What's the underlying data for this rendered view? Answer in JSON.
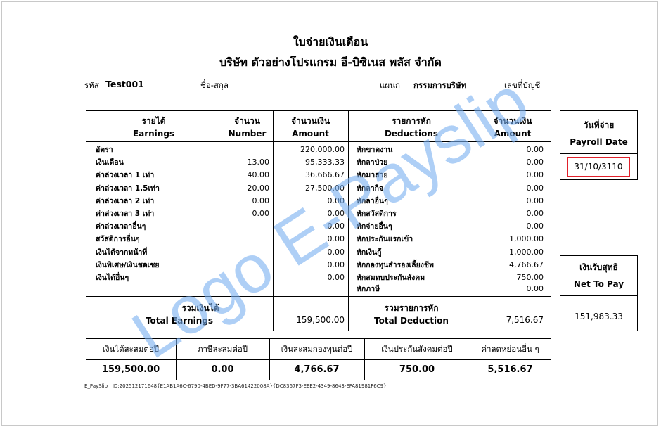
{
  "title": "ใบจ่ายเงินเดือน",
  "company": "บริษัท ตัวอย่างโปรแกรม อี-บิซิเนส พลัส  จำกัด",
  "info": {
    "code_label": "รหัส",
    "code_value": "Test001",
    "name_label": "ชื่อ-สกุล",
    "dept_label": "แผนก",
    "dept_value": "กรรมการบริษัท",
    "account_label": "เลขที่บัญชี"
  },
  "headers": {
    "earnings_th": "รายได้",
    "earnings_en": "Earnings",
    "number_th": "จำนวน",
    "number_en": "Number",
    "amount_th": "จำนวนเงิน",
    "amount_en": "Amount",
    "deductions_th": "รายการหัก",
    "deductions_en": "Deductions",
    "damount_th": "จำนวนเงิน",
    "damount_en": "Amount"
  },
  "earnings": [
    {
      "label": "อัตรา",
      "number": "",
      "amount": "220,000.00"
    },
    {
      "label": "เงินเดือน",
      "number": "13.00",
      "amount": "95,333.33"
    },
    {
      "label": "ค่าล่วงเวลา 1 เท่า",
      "number": "40.00",
      "amount": "36,666.67"
    },
    {
      "label": "ค่าล่วงเวลา 1.5เท่า",
      "number": "20.00",
      "amount": "27,500.00"
    },
    {
      "label": "ค่าล่วงเวลา 2 เท่า",
      "number": "0.00",
      "amount": "0.00"
    },
    {
      "label": "ค่าล่วงเวลา 3 เท่า",
      "number": "0.00",
      "amount": "0.00"
    },
    {
      "label": "ค่าล่วงเวลาอื่นๆ",
      "number": "",
      "amount": "0.00"
    },
    {
      "label": "สวัสดิการอื่นๆ",
      "number": "",
      "amount": "0.00"
    },
    {
      "label": "เงินได้จากหน้าที่",
      "number": "",
      "amount": "0.00"
    },
    {
      "label": "เงินพิเศษ/เงินชดเชย",
      "number": "",
      "amount": "0.00"
    },
    {
      "label": "เงินได้อื่นๆ",
      "number": "",
      "amount": "0.00"
    }
  ],
  "deductions": [
    {
      "label": "หักขาดงาน",
      "amount": "0.00"
    },
    {
      "label": "หักลาป่วย",
      "amount": "0.00"
    },
    {
      "label": "หักมาสาย",
      "amount": "0.00"
    },
    {
      "label": "หักลากิจ",
      "amount": "0.00"
    },
    {
      "label": "หักลาอื่นๆ",
      "amount": "0.00"
    },
    {
      "label": "หักสวัสดิการ",
      "amount": "0.00"
    },
    {
      "label": "หักจ่ายอื่นๆ",
      "amount": "0.00"
    },
    {
      "label": "หักประกันแรกเข้า",
      "amount": "1,000.00"
    },
    {
      "label": "หักเงินกู้",
      "amount": "1,000.00"
    },
    {
      "label": "หักกองทุนสำรองเลี้ยงชีพ",
      "amount": "4,766.67"
    },
    {
      "label": "หักสมทบประกันสังคม",
      "amount": "750.00"
    },
    {
      "label": "หักภาษี",
      "amount": "0.00"
    }
  ],
  "totals": {
    "earnings_th": "รวมเงินได้",
    "earnings_en": "Total Earnings",
    "earnings_value": "159,500.00",
    "deduction_th": "รวมรายการหัก",
    "deduction_en": "Total Deduction",
    "deduction_value": "7,516.67"
  },
  "payroll_date": {
    "label_th": "วันที่จ่าย",
    "label_en": "Payroll Date",
    "value": "31/10/3110",
    "highlight_color": "#e0202a"
  },
  "net_pay": {
    "label_th": "เงินรับสุทธิ",
    "label_en": "Net To Pay",
    "value": "151,983.33"
  },
  "summary": [
    {
      "label": "เงินได้สะสมต่อปี",
      "value": "159,500.00"
    },
    {
      "label": "ภาษีสะสมต่อปี",
      "value": "0.00"
    },
    {
      "label": "เงินสะสมกองทุนต่อปี",
      "value": "4,766.67"
    },
    {
      "label": "เงินประกันสังคมต่อปี",
      "value": "750.00"
    },
    {
      "label": "ค่าลดหย่อนอื่น ๆ",
      "value": "5,516.67"
    }
  ],
  "watermark": "Logo E-Payslip",
  "watermark_color": "#78aff0",
  "footer_id": "E_PaySlip : ID:202512171648{E1AB1A6C-6790-4BED-9F77-3BA61422008A}{DC8367F3-EEE2-4349-8643-EFA81981F6C9}"
}
